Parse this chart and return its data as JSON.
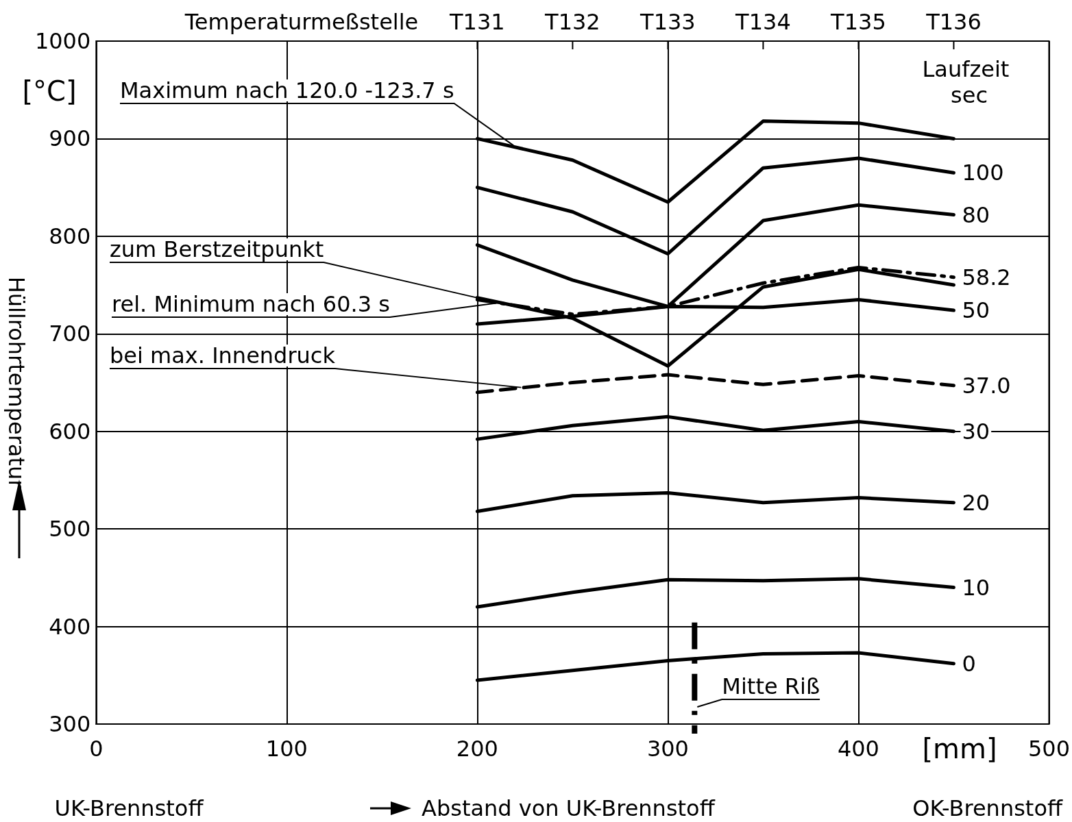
{
  "chart_data": {
    "type": "line",
    "xlabel": "Abstand von UK-Brennstoff",
    "ylabel": "Hüllrohrtemperatur",
    "x": [
      200,
      250,
      300,
      350,
      400,
      450
    ],
    "xlim": [
      0,
      500
    ],
    "xticks": [
      0,
      100,
      200,
      300,
      400,
      500
    ],
    "ylim": [
      300,
      1000
    ],
    "yticks": [
      300,
      400,
      500,
      600,
      700,
      800,
      900,
      1000
    ],
    "series": [
      {
        "color": "#000000",
        "line_style": "solid",
        "values": [
          900,
          878,
          835,
          918,
          916,
          900
        ]
      },
      {
        "name": "100",
        "color": "#000000",
        "line_style": "solid",
        "values": [
          850,
          825,
          782,
          870,
          880,
          865
        ]
      },
      {
        "name": "80",
        "color": "#000000",
        "line_style": "solid",
        "values": [
          791,
          755,
          728,
          816,
          832,
          822
        ]
      },
      {
        "name": "58.2",
        "color": "#000000",
        "line_style": "dashdot",
        "values": [
          735,
          720,
          728,
          752,
          768,
          758
        ]
      },
      {
        "color": "#000000",
        "line_style": "solid",
        "values": [
          737,
          716,
          667,
          748,
          766,
          750
        ]
      },
      {
        "name": "50",
        "color": "#000000",
        "line_style": "solid",
        "values": [
          710,
          718,
          728,
          727,
          735,
          724
        ]
      },
      {
        "name": "37.0",
        "color": "#000000",
        "line_style": "dashed",
        "values": [
          640,
          650,
          658,
          648,
          657,
          647
        ]
      },
      {
        "name": "30",
        "color": "#000000",
        "line_style": "solid",
        "values": [
          592,
          606,
          615,
          601,
          610,
          600
        ]
      },
      {
        "name": "20",
        "color": "#000000",
        "line_style": "solid",
        "values": [
          518,
          534,
          537,
          527,
          532,
          527
        ]
      },
      {
        "name": "10",
        "color": "#000000",
        "line_style": "solid",
        "values": [
          420,
          435,
          448,
          447,
          449,
          440
        ]
      },
      {
        "name": "0",
        "color": "#000000",
        "line_style": "solid",
        "values": [
          345,
          355,
          365,
          372,
          373,
          362
        ]
      }
    ],
    "ref_lines": [
      {
        "axis": "x",
        "value": 314,
        "label": "Mitte Riß",
        "line_style": "dashdot",
        "color": "#000000"
      }
    ],
    "annotations": [
      {
        "text": "Maximum nach 120.0 -123.7 s",
        "x": 219,
        "y": 893
      },
      {
        "text": "zum Berstzeitpunkt",
        "x": 213,
        "y": 731
      },
      {
        "text": "rel. Minimum nach 60.3 s",
        "x": 212,
        "y": 732
      },
      {
        "text": "bei max. Innendruck",
        "x": 223,
        "y": 645
      },
      "[°C]",
      "Laufzeit sec",
      "[mm]",
      "UK-Brennstoff",
      "OK-Brennstoff",
      "Temperaturmeßstelle",
      "T131",
      "T132",
      "T133",
      "T134",
      "T135",
      "T136"
    ],
    "marker": "none",
    "grid": true,
    "legend": false
  }
}
